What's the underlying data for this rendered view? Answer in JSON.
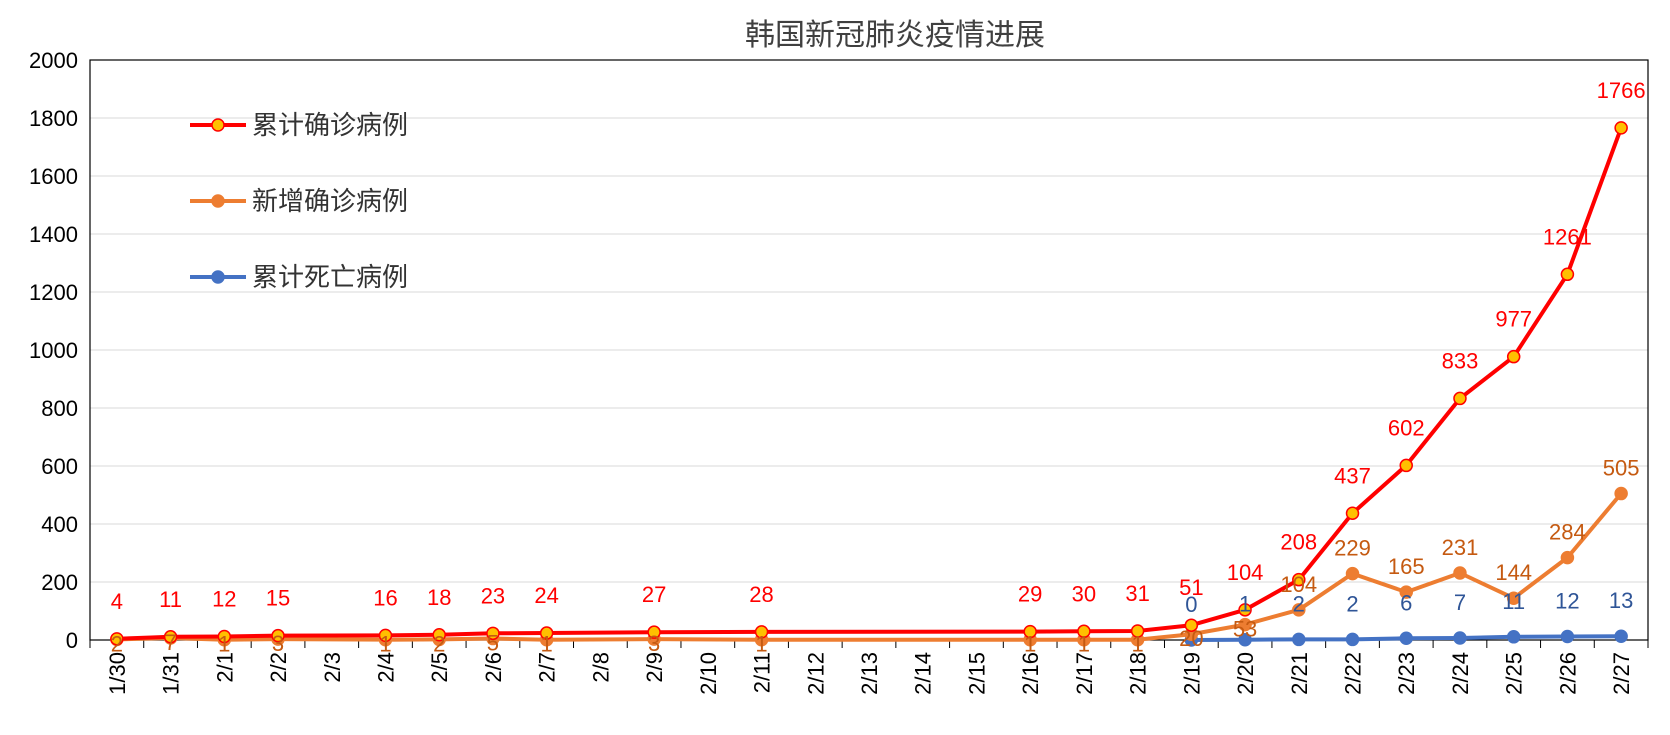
{
  "chart_data": {
    "type": "line",
    "title": "韩国新冠肺炎疫情进展",
    "xlabel": "",
    "ylabel": "",
    "ylim": [
      0,
      2000
    ],
    "yticks": [
      0,
      200,
      400,
      600,
      800,
      1000,
      1200,
      1400,
      1600,
      1800,
      2000
    ],
    "grid": true,
    "legend_position": "top-left",
    "categories": [
      "1/30",
      "1/31",
      "2/1",
      "2/2",
      "2/3",
      "2/4",
      "2/5",
      "2/6",
      "2/7",
      "2/8",
      "2/9",
      "2/10",
      "2/11",
      "2/12",
      "2/13",
      "2/14",
      "2/15",
      "2/16",
      "2/17",
      "2/18",
      "2/19",
      "2/20",
      "2/21",
      "2/22",
      "2/23",
      "2/24",
      "2/25",
      "2/26",
      "2/27"
    ],
    "series": [
      {
        "name": "累计确诊病例",
        "color": "#ff0000",
        "marker_fill": "#ffc000",
        "values": [
          4,
          11,
          12,
          15,
          null,
          16,
          18,
          23,
          24,
          null,
          27,
          null,
          28,
          null,
          null,
          null,
          null,
          29,
          30,
          31,
          51,
          104,
          208,
          437,
          602,
          833,
          977,
          1261,
          1766
        ]
      },
      {
        "name": "新增确诊病例",
        "color": "#ed7d31",
        "marker_fill": "#ed7d31",
        "values": [
          2,
          7,
          1,
          3,
          null,
          1,
          2,
          5,
          1,
          null,
          3,
          null,
          1,
          null,
          null,
          null,
          null,
          1,
          1,
          1,
          20,
          53,
          104,
          229,
          165,
          231,
          144,
          284,
          505
        ]
      },
      {
        "name": "累计死亡病例",
        "color": "#4472c4",
        "marker_fill": "#4472c4",
        "values": [
          null,
          null,
          null,
          null,
          null,
          null,
          null,
          null,
          null,
          null,
          null,
          null,
          null,
          null,
          null,
          null,
          null,
          null,
          null,
          null,
          0,
          1,
          2,
          2,
          6,
          7,
          11,
          12,
          13
        ]
      }
    ]
  }
}
